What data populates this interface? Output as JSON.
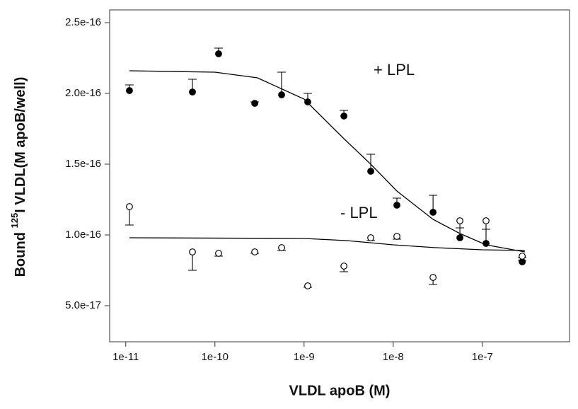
{
  "chart_data": {
    "type": "scatter",
    "x_label": "VLDL apoB (M)",
    "y_label": [
      "Bound ",
      "125",
      "I VLDL(M apoB/well)"
    ],
    "log_x": true,
    "xlim": [
      6.6e-12,
      9.5e-07
    ],
    "xticks": [
      1e-11,
      1e-10,
      1e-09,
      1e-08,
      1e-07
    ],
    "ylim": [
      2.45e-17,
      2.59e-16
    ],
    "yticks": [
      {
        "value": 5e-17,
        "label": "5.0e-17"
      },
      {
        "value": 1e-16,
        "label": "1.0e-16"
      },
      {
        "value": 1.5e-16,
        "label": "1.5e-16"
      },
      {
        "value": 2e-16,
        "label": "2.0e-16"
      },
      {
        "value": 2.5e-16,
        "label": "2.5e-16"
      }
    ],
    "annotations": [
      "+ LPL",
      "- LPL"
    ],
    "series": [
      {
        "type": "scatter",
        "marker": "filled",
        "color": "#000000",
        "error_direction": "up",
        "x": [
          1.1e-11,
          5.6e-11,
          1.1e-10,
          2.8e-10,
          5.6e-10,
          1.1e-09,
          2.8e-09,
          5.6e-09,
          1.1e-08,
          2.8e-08,
          5.6e-08,
          1.1e-07,
          2.8e-07
        ],
        "values": [
          2.02e-16,
          2.01e-16,
          2.28e-16,
          1.93e-16,
          1.99e-16,
          1.94e-16,
          1.84e-16,
          1.45e-16,
          1.21e-16,
          1.16e-16,
          9.8e-17,
          9.4e-17,
          8.1e-17
        ],
        "errors": [
          4e-18,
          9e-18,
          4e-18,
          1e-18,
          1.6e-17,
          6e-18,
          4e-18,
          1.2e-17,
          5e-18,
          1.2e-17,
          7e-18,
          1e-17,
          1e-18
        ]
      },
      {
        "type": "scatter",
        "marker": "open",
        "color": "#000000",
        "error_direction": "down",
        "x": [
          1.1e-11,
          5.6e-11,
          1.1e-10,
          2.8e-10,
          5.6e-10,
          1.1e-09,
          2.8e-09,
          5.6e-09,
          1.1e-08,
          2.8e-08,
          5.6e-08,
          1.1e-07,
          2.8e-07
        ],
        "values": [
          1.2e-16,
          8.8e-17,
          8.7e-17,
          8.8e-17,
          9.1e-17,
          6.4e-17,
          7.8e-17,
          9.8e-17,
          9.9e-17,
          7e-17,
          1.1e-16,
          1.1e-16,
          8.5e-17
        ],
        "errors": [
          1.3e-17,
          1.3e-17,
          2e-18,
          1e-18,
          2e-18,
          1e-18,
          4e-18,
          2e-18,
          2e-18,
          5e-18,
          5e-18,
          6e-18,
          1e-18
        ]
      },
      {
        "type": "line",
        "color": "#000000",
        "x": [
          1.1e-11,
          1e-10,
          3e-10,
          1e-09,
          2.8e-09,
          5.6e-09,
          1.1e-08,
          2.8e-08,
          5.6e-08,
          1.1e-07,
          3e-07
        ],
        "values": [
          2.16e-16,
          2.15e-16,
          2.11e-16,
          1.96e-16,
          1.68e-16,
          1.5e-16,
          1.31e-16,
          1.11e-16,
          1.01e-16,
          9.3e-17,
          8.8e-17
        ]
      },
      {
        "type": "line",
        "color": "#000000",
        "x": [
          1.1e-11,
          1e-09,
          3e-09,
          1e-08,
          3e-08,
          1e-07,
          3e-07
        ],
        "values": [
          9.8e-17,
          9.75e-17,
          9.6e-17,
          9.3e-17,
          9.1e-17,
          8.95e-17,
          8.9e-17
        ]
      }
    ]
  }
}
